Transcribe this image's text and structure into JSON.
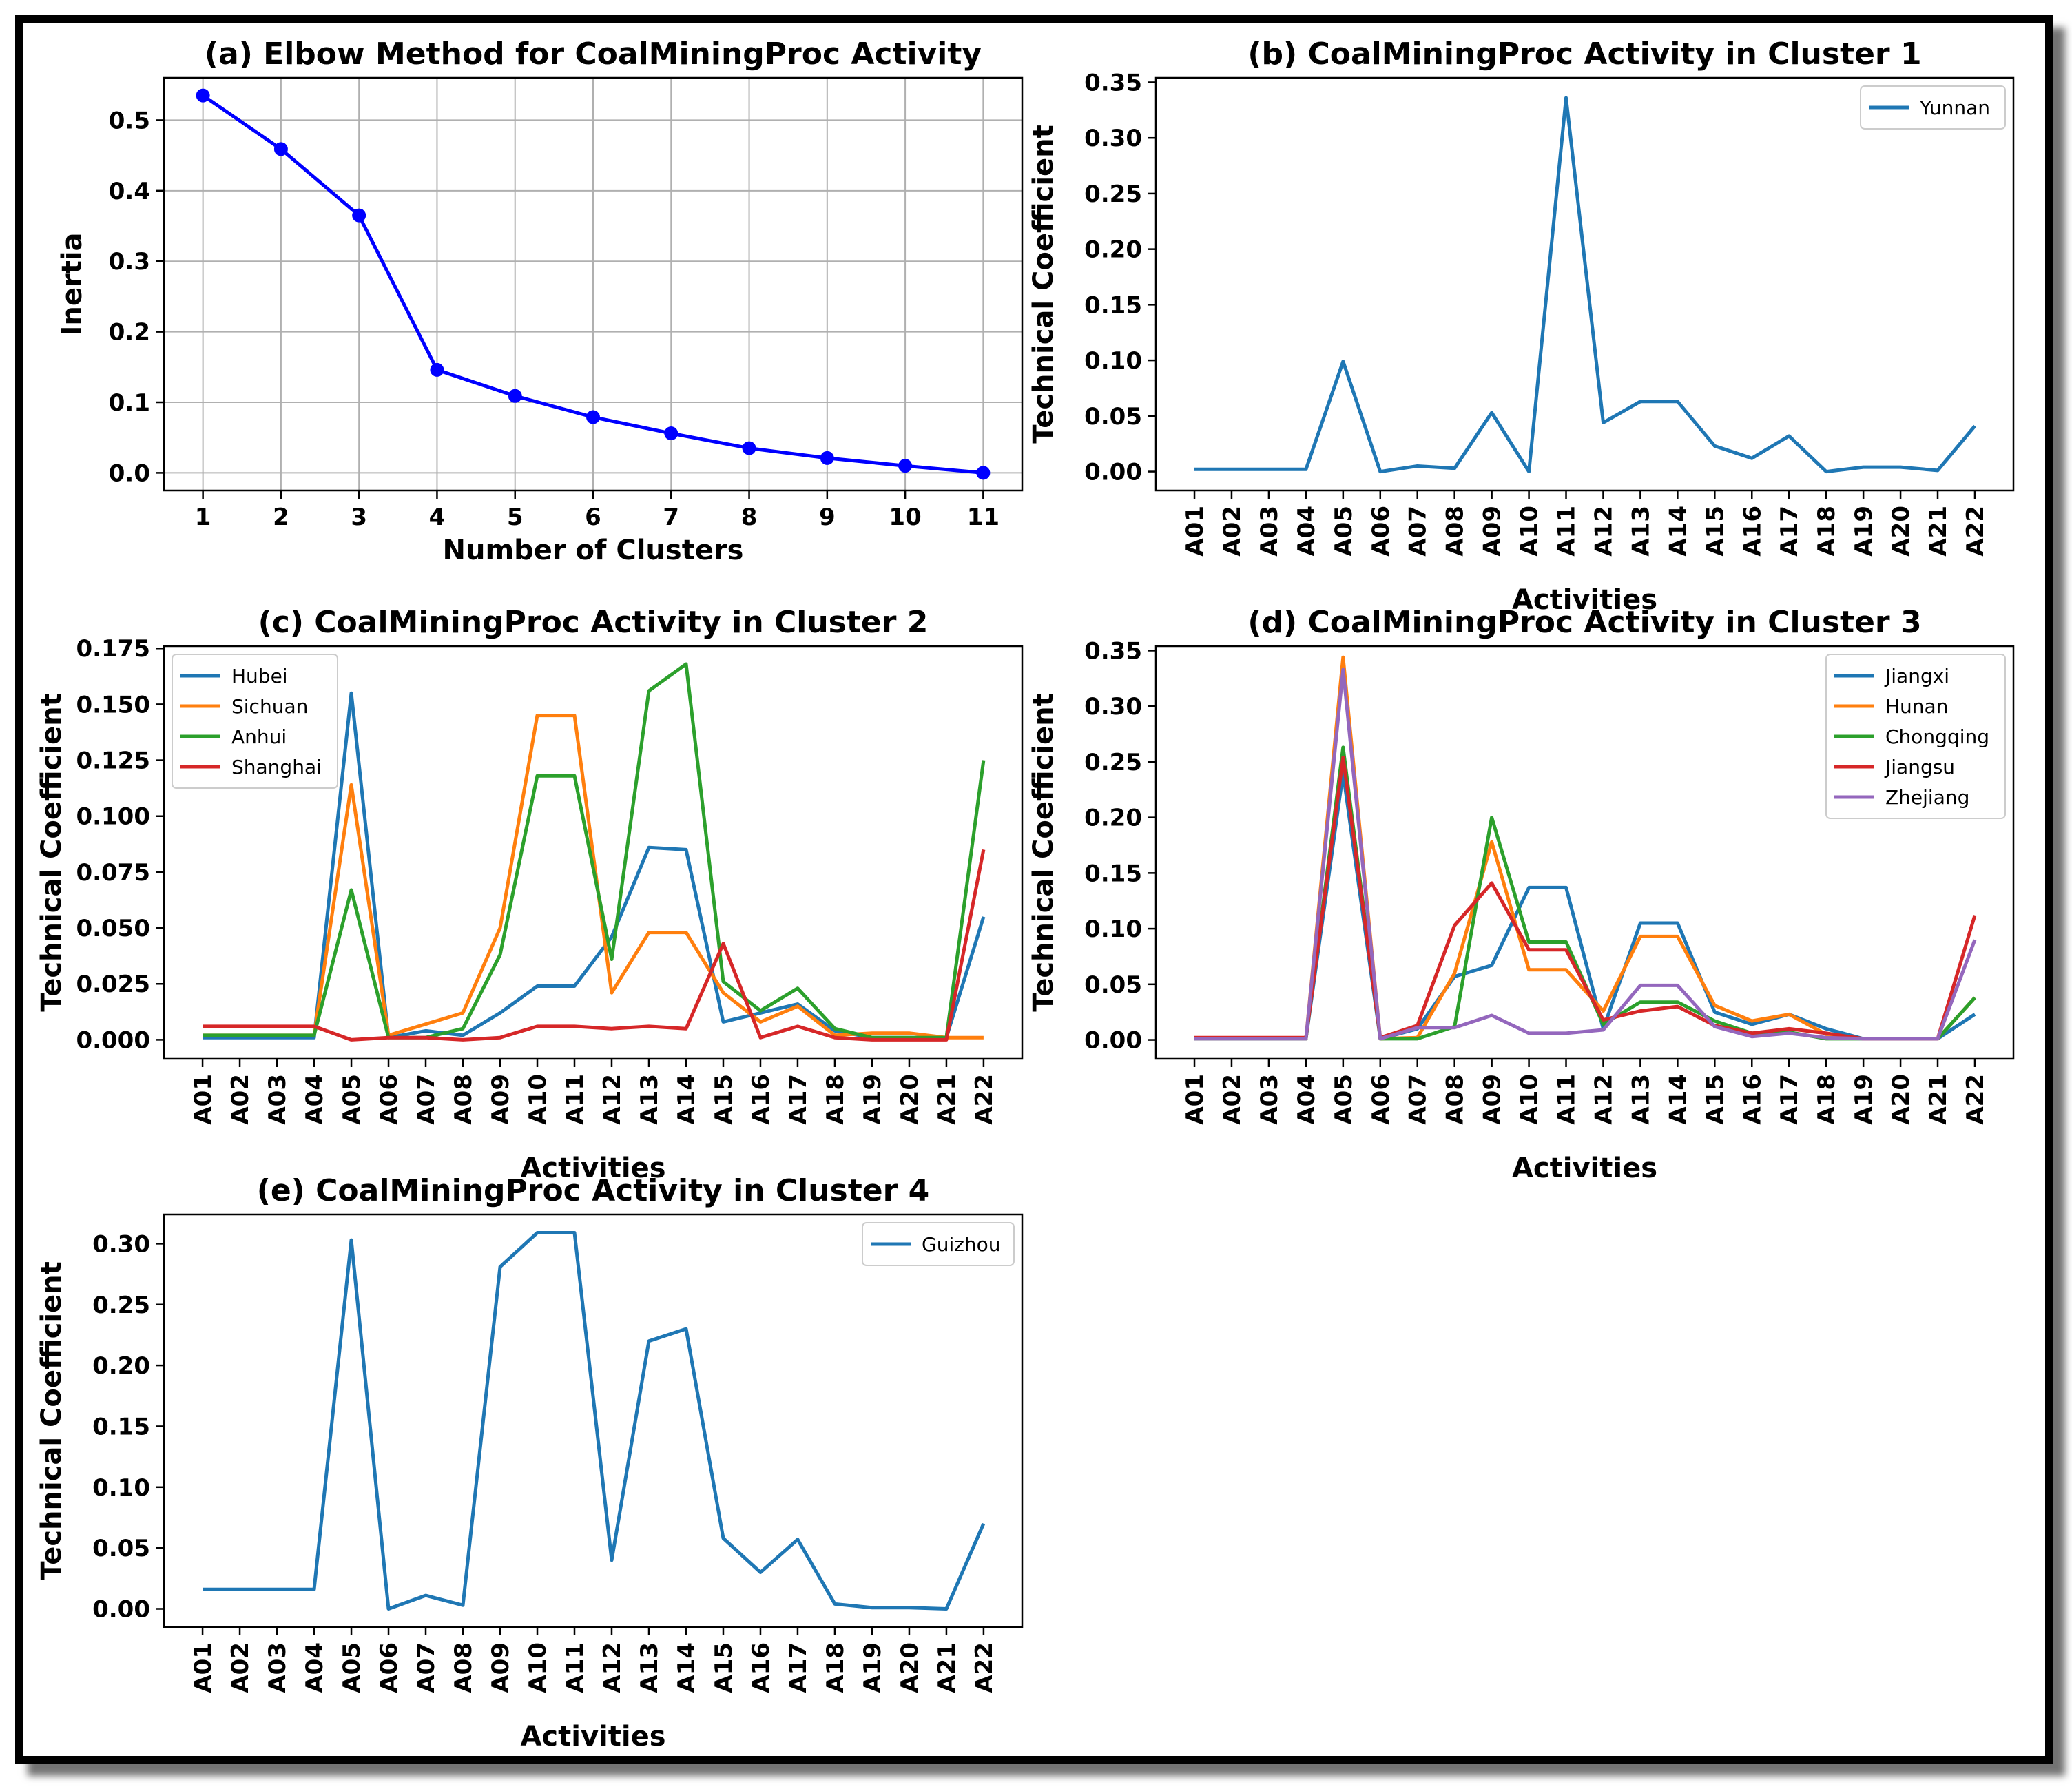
{
  "chart_data": [
    {
      "id": "a",
      "type": "line",
      "title": "(a) Elbow Method for CoalMiningProc Activity",
      "xlabel": "Number of Clusters",
      "ylabel": "Inertia",
      "x": [
        1,
        2,
        3,
        4,
        5,
        6,
        7,
        8,
        9,
        10,
        11
      ],
      "xticks": [
        "1",
        "2",
        "3",
        "4",
        "5",
        "6",
        "7",
        "8",
        "9",
        "10",
        "11"
      ],
      "xlim": [
        0.5,
        11.5
      ],
      "ylim": [
        -0.025,
        0.56
      ],
      "yticks": [
        "0.0",
        "0.1",
        "0.2",
        "0.3",
        "0.4",
        "0.5"
      ],
      "grid": true,
      "markers": true,
      "series": [
        {
          "name": "Inertia",
          "color": "#0000ff",
          "values": [
            0.535,
            0.459,
            0.365,
            0.146,
            0.109,
            0.079,
            0.056,
            0.035,
            0.021,
            0.01,
            0.0
          ]
        }
      ]
    },
    {
      "id": "b",
      "type": "line",
      "title": "(b) CoalMiningProc Activity in Cluster 1",
      "xlabel": "Activities",
      "ylabel": "Technical Coefficient",
      "categories": [
        "A01",
        "A02",
        "A03",
        "A04",
        "A05",
        "A06",
        "A07",
        "A08",
        "A09",
        "A10",
        "A11",
        "A12",
        "A13",
        "A14",
        "A15",
        "A16",
        "A17",
        "A18",
        "A19",
        "A20",
        "A21",
        "A22"
      ],
      "ylim": [
        -0.017,
        0.354
      ],
      "yticks": [
        "0.00",
        "0.05",
        "0.10",
        "0.15",
        "0.20",
        "0.25",
        "0.30",
        "0.35"
      ],
      "legend": "top-right",
      "series": [
        {
          "name": "Yunnan",
          "color": "#1f77b4",
          "values": [
            0.002,
            0.002,
            0.002,
            0.002,
            0.099,
            0.0,
            0.005,
            0.003,
            0.053,
            0.0,
            0.336,
            0.044,
            0.063,
            0.063,
            0.023,
            0.012,
            0.032,
            0.0,
            0.004,
            0.004,
            0.001,
            0.041
          ]
        }
      ]
    },
    {
      "id": "c",
      "type": "line",
      "title": "(c) CoalMiningProc Activity in Cluster 2",
      "xlabel": "Activities",
      "ylabel": "Technical Coefficient",
      "categories": [
        "A01",
        "A02",
        "A03",
        "A04",
        "A05",
        "A06",
        "A07",
        "A08",
        "A09",
        "A10",
        "A11",
        "A12",
        "A13",
        "A14",
        "A15",
        "A16",
        "A17",
        "A18",
        "A19",
        "A20",
        "A21",
        "A22"
      ],
      "ylim": [
        -0.0085,
        0.176
      ],
      "yticks": [
        "0.000",
        "0.025",
        "0.050",
        "0.075",
        "0.100",
        "0.125",
        "0.150",
        "0.175"
      ],
      "legend": "top-left",
      "series": [
        {
          "name": "Hubei",
          "color": "#1f77b4",
          "values": [
            0.001,
            0.001,
            0.001,
            0.001,
            0.155,
            0.001,
            0.004,
            0.002,
            0.012,
            0.024,
            0.024,
            0.046,
            0.086,
            0.085,
            0.008,
            0.012,
            0.016,
            0.004,
            0.001,
            0.001,
            0.001,
            0.055
          ]
        },
        {
          "name": "Sichuan",
          "color": "#ff7f0e",
          "values": [
            0.002,
            0.002,
            0.002,
            0.002,
            0.114,
            0.002,
            0.007,
            0.012,
            0.05,
            0.145,
            0.145,
            0.021,
            0.048,
            0.048,
            0.021,
            0.008,
            0.015,
            0.002,
            0.003,
            0.003,
            0.001,
            0.001
          ]
        },
        {
          "name": "Anhui",
          "color": "#2ca02c",
          "values": [
            0.002,
            0.002,
            0.002,
            0.002,
            0.067,
            0.001,
            0.001,
            0.005,
            0.038,
            0.118,
            0.118,
            0.036,
            0.156,
            0.168,
            0.026,
            0.013,
            0.023,
            0.005,
            0.001,
            0.001,
            0.001,
            0.125
          ]
        },
        {
          "name": "Shanghai",
          "color": "#d62728",
          "values": [
            0.006,
            0.006,
            0.006,
            0.006,
            0.0,
            0.001,
            0.001,
            0.0,
            0.001,
            0.006,
            0.006,
            0.005,
            0.006,
            0.005,
            0.043,
            0.001,
            0.006,
            0.001,
            0.0,
            0.0,
            0.0,
            0.085
          ]
        }
      ]
    },
    {
      "id": "d",
      "type": "line",
      "title": "(d) CoalMiningProc Activity in Cluster 3",
      "xlabel": "Activities",
      "ylabel": "Technical Coefficient",
      "categories": [
        "A01",
        "A02",
        "A03",
        "A04",
        "A05",
        "A06",
        "A07",
        "A08",
        "A09",
        "A10",
        "A11",
        "A12",
        "A13",
        "A14",
        "A15",
        "A16",
        "A17",
        "A18",
        "A19",
        "A20",
        "A21",
        "A22"
      ],
      "ylim": [
        -0.017,
        0.354
      ],
      "yticks": [
        "0.00",
        "0.05",
        "0.10",
        "0.15",
        "0.20",
        "0.25",
        "0.30",
        "0.35"
      ],
      "legend": "top-right",
      "series": [
        {
          "name": "Jiangxi",
          "color": "#1f77b4",
          "values": [
            0.001,
            0.001,
            0.001,
            0.001,
            0.24,
            0.001,
            0.01,
            0.057,
            0.067,
            0.137,
            0.137,
            0.01,
            0.105,
            0.105,
            0.025,
            0.014,
            0.023,
            0.01,
            0.001,
            0.001,
            0.001,
            0.023
          ]
        },
        {
          "name": "Hunan",
          "color": "#ff7f0e",
          "values": [
            0.001,
            0.001,
            0.001,
            0.001,
            0.344,
            0.001,
            0.002,
            0.06,
            0.178,
            0.063,
            0.063,
            0.026,
            0.093,
            0.093,
            0.031,
            0.017,
            0.023,
            0.005,
            0.001,
            0.001,
            0.001,
            0.038
          ]
        },
        {
          "name": "Chongqing",
          "color": "#2ca02c",
          "values": [
            0.001,
            0.001,
            0.001,
            0.001,
            0.263,
            0.001,
            0.001,
            0.012,
            0.2,
            0.088,
            0.088,
            0.014,
            0.034,
            0.034,
            0.017,
            0.006,
            0.007,
            0.001,
            0.001,
            0.001,
            0.001,
            0.038
          ]
        },
        {
          "name": "Jiangsu",
          "color": "#d62728",
          "values": [
            0.002,
            0.002,
            0.002,
            0.002,
            0.254,
            0.002,
            0.013,
            0.103,
            0.141,
            0.081,
            0.081,
            0.018,
            0.026,
            0.03,
            0.013,
            0.006,
            0.01,
            0.006,
            0.001,
            0.001,
            0.001,
            0.112
          ]
        },
        {
          "name": "Zhejiang",
          "color": "#9467bd",
          "values": [
            0.001,
            0.001,
            0.001,
            0.001,
            0.333,
            0.001,
            0.011,
            0.011,
            0.022,
            0.006,
            0.006,
            0.009,
            0.049,
            0.049,
            0.012,
            0.003,
            0.006,
            0.002,
            0.001,
            0.001,
            0.001,
            0.09
          ]
        }
      ]
    },
    {
      "id": "e",
      "type": "line",
      "title": "(e) CoalMiningProc Activity in Cluster 4",
      "xlabel": "Activities",
      "ylabel": "Technical Coefficient",
      "categories": [
        "A01",
        "A02",
        "A03",
        "A04",
        "A05",
        "A06",
        "A07",
        "A08",
        "A09",
        "A10",
        "A11",
        "A12",
        "A13",
        "A14",
        "A15",
        "A16",
        "A17",
        "A18",
        "A19",
        "A20",
        "A21",
        "A22"
      ],
      "ylim": [
        -0.015,
        0.324
      ],
      "yticks": [
        "0.00",
        "0.05",
        "0.10",
        "0.15",
        "0.20",
        "0.25",
        "0.30"
      ],
      "legend": "top-right",
      "series": [
        {
          "name": "Guizhou",
          "color": "#1f77b4",
          "values": [
            0.016,
            0.016,
            0.016,
            0.016,
            0.303,
            0.0,
            0.011,
            0.003,
            0.281,
            0.309,
            0.309,
            0.04,
            0.22,
            0.23,
            0.058,
            0.03,
            0.057,
            0.004,
            0.001,
            0.001,
            0.0,
            0.07
          ]
        }
      ]
    }
  ]
}
